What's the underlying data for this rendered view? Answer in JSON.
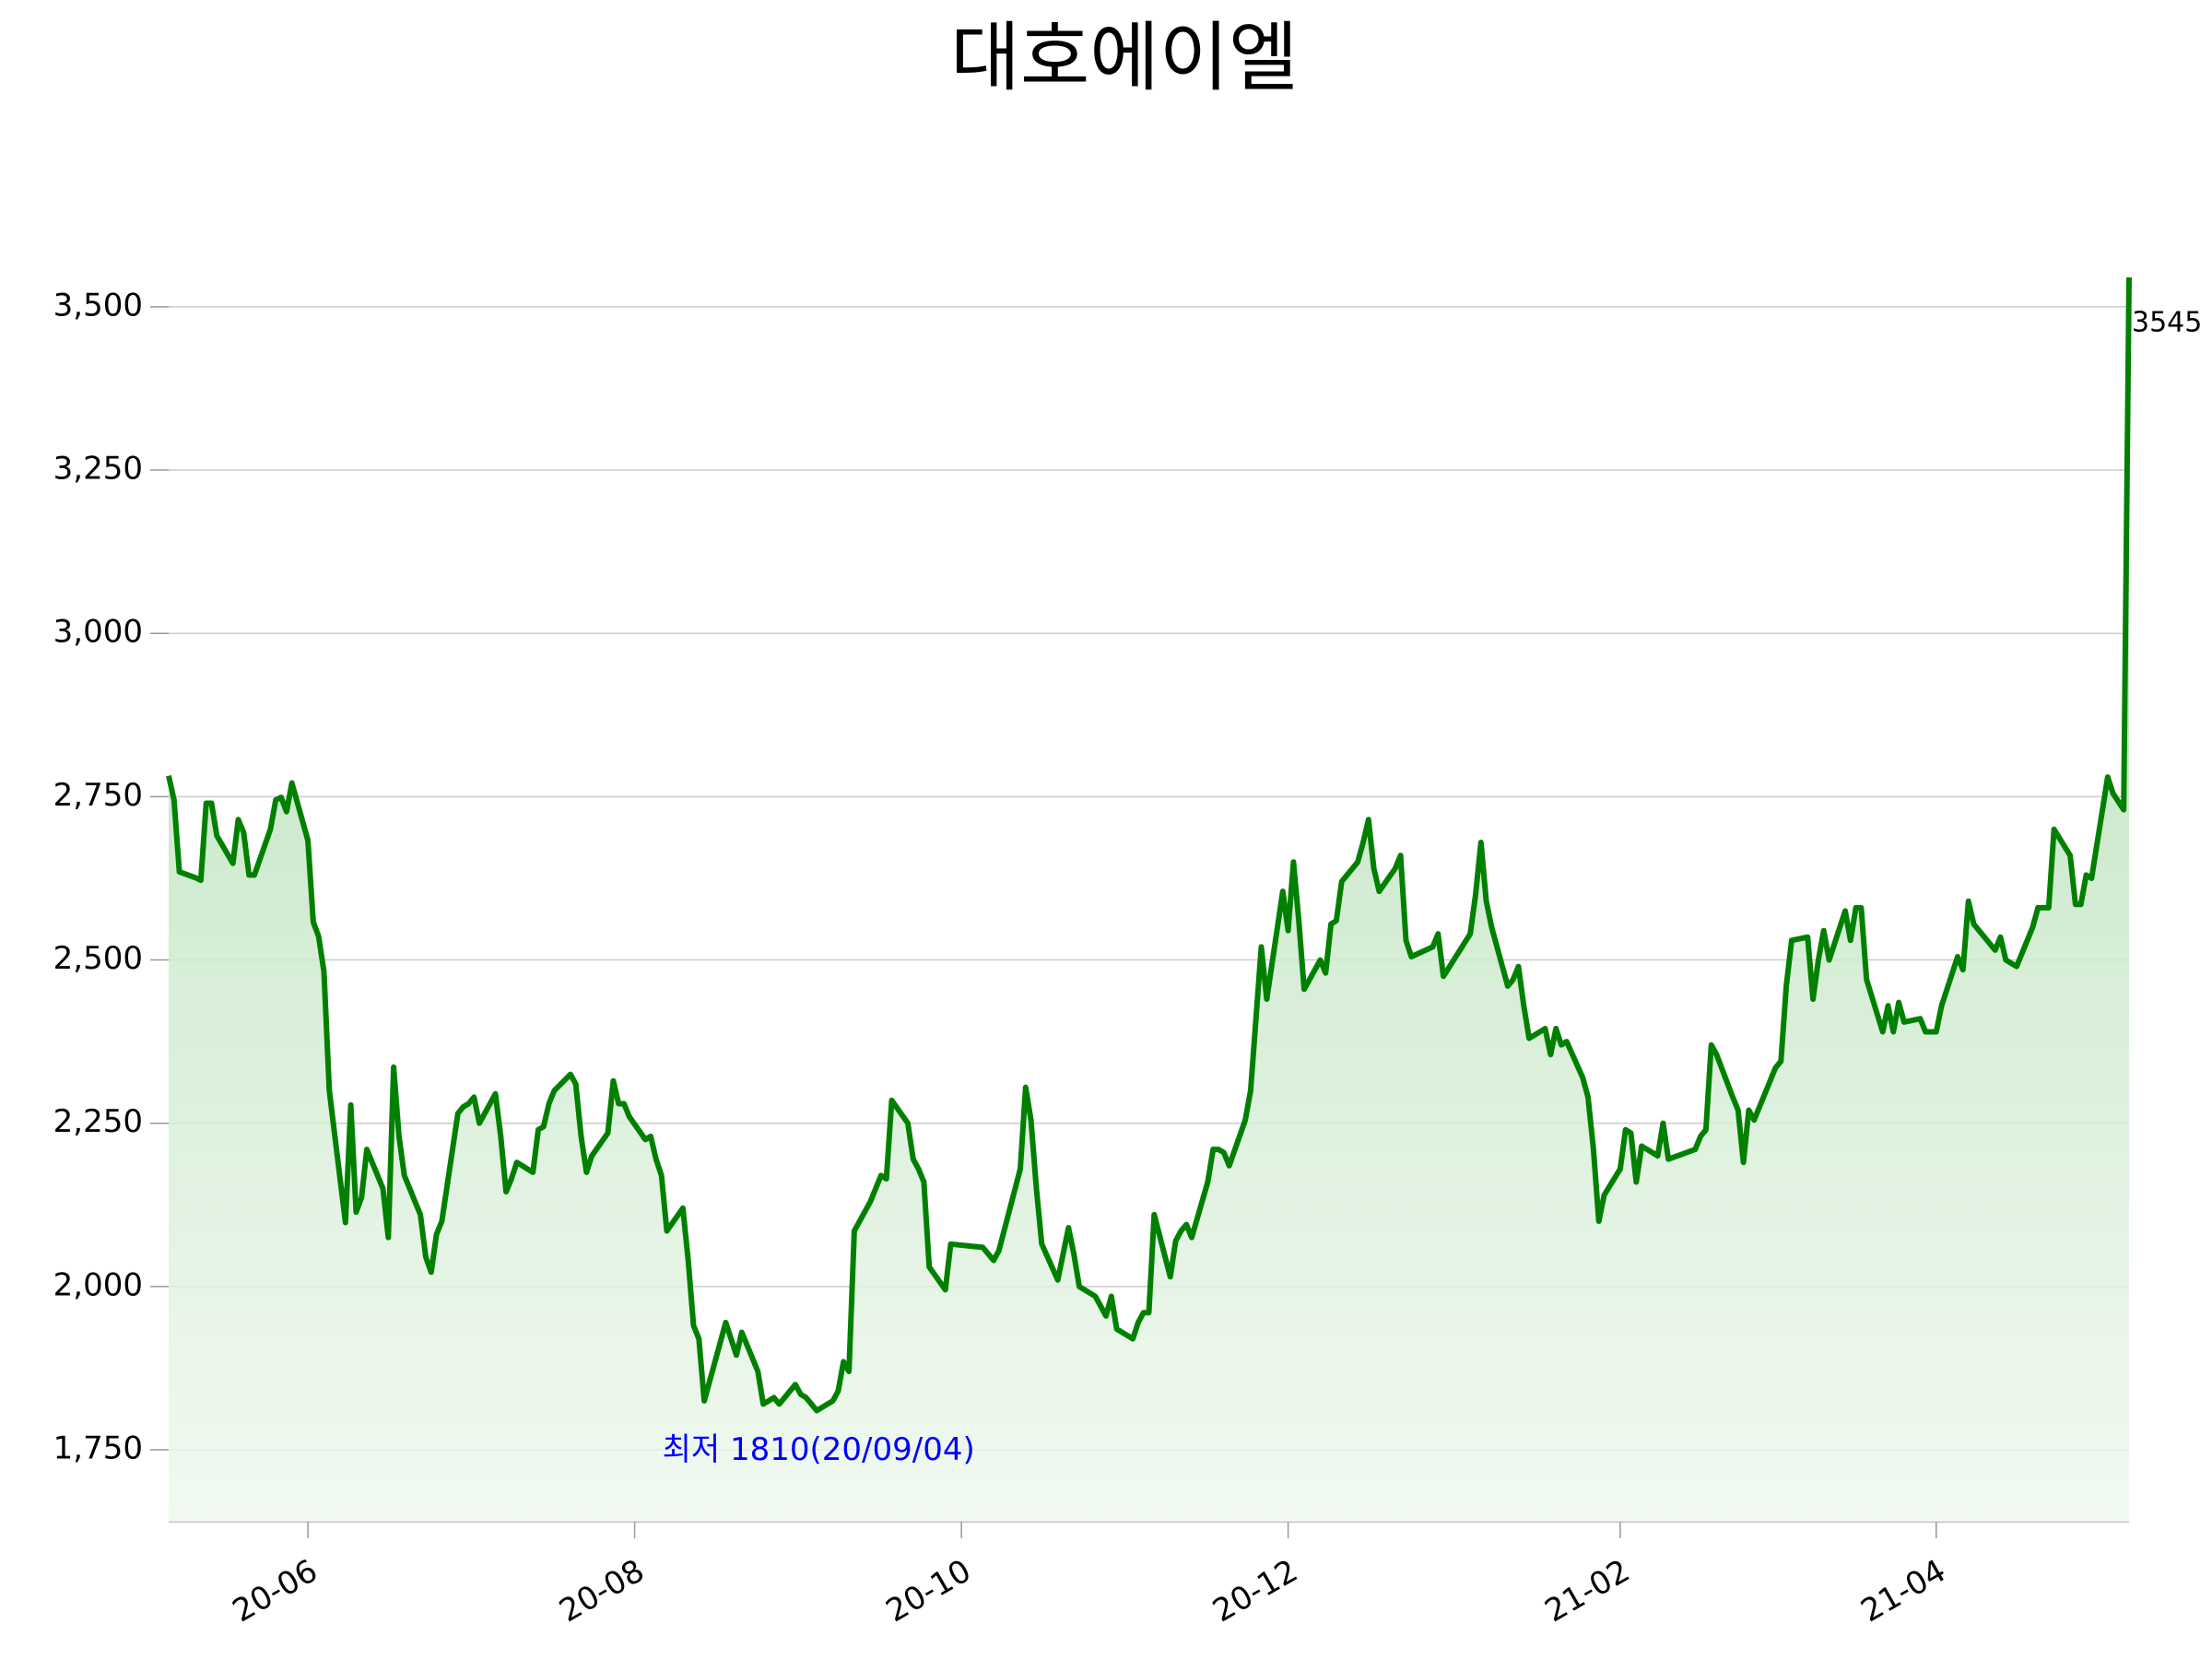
{
  "chart_data": {
    "type": "line",
    "title": "대호에이엘",
    "x": [
      "2020-05-06",
      "2020-05-07",
      "2020-05-08",
      "2020-05-11",
      "2020-05-12",
      "2020-05-13",
      "2020-05-14",
      "2020-05-15",
      "2020-05-18",
      "2020-05-19",
      "2020-05-20",
      "2020-05-21",
      "2020-05-22",
      "2020-05-25",
      "2020-05-26",
      "2020-05-27",
      "2020-05-28",
      "2020-05-29",
      "2020-06-01",
      "2020-06-02",
      "2020-06-03",
      "2020-06-04",
      "2020-06-05",
      "2020-06-08",
      "2020-06-09",
      "2020-06-10",
      "2020-06-11",
      "2020-06-12",
      "2020-06-15",
      "2020-06-16",
      "2020-06-17",
      "2020-06-18",
      "2020-06-19",
      "2020-06-22",
      "2020-06-23",
      "2020-06-24",
      "2020-06-25",
      "2020-06-26",
      "2020-06-29",
      "2020-06-30",
      "2020-07-01",
      "2020-07-02",
      "2020-07-03",
      "2020-07-06",
      "2020-07-07",
      "2020-07-08",
      "2020-07-09",
      "2020-07-10",
      "2020-07-13",
      "2020-07-14",
      "2020-07-15",
      "2020-07-16",
      "2020-07-17",
      "2020-07-20",
      "2020-07-21",
      "2020-07-22",
      "2020-07-23",
      "2020-07-24",
      "2020-07-27",
      "2020-07-28",
      "2020-07-29",
      "2020-07-30",
      "2020-07-31",
      "2020-08-03",
      "2020-08-04",
      "2020-08-05",
      "2020-08-06",
      "2020-08-07",
      "2020-08-10",
      "2020-08-11",
      "2020-08-12",
      "2020-08-13",
      "2020-08-14",
      "2020-08-18",
      "2020-08-19",
      "2020-08-20",
      "2020-08-21",
      "2020-08-24",
      "2020-08-25",
      "2020-08-26",
      "2020-08-27",
      "2020-08-28",
      "2020-08-31",
      "2020-09-01",
      "2020-09-02",
      "2020-09-03",
      "2020-09-04",
      "2020-09-07",
      "2020-09-08",
      "2020-09-09",
      "2020-09-10",
      "2020-09-11",
      "2020-09-14",
      "2020-09-15",
      "2020-09-16",
      "2020-09-17",
      "2020-09-18",
      "2020-09-21",
      "2020-09-22",
      "2020-09-23",
      "2020-09-24",
      "2020-09-25",
      "2020-09-28",
      "2020-09-29",
      "2020-10-05",
      "2020-10-06",
      "2020-10-07",
      "2020-10-08",
      "2020-10-12",
      "2020-10-13",
      "2020-10-14",
      "2020-10-15",
      "2020-10-16",
      "2020-10-19",
      "2020-10-20",
      "2020-10-21",
      "2020-10-22",
      "2020-10-23",
      "2020-10-26",
      "2020-10-27",
      "2020-10-28",
      "2020-10-29",
      "2020-10-30",
      "2020-11-02",
      "2020-11-03",
      "2020-11-04",
      "2020-11-05",
      "2020-11-06",
      "2020-11-09",
      "2020-11-10",
      "2020-11-11",
      "2020-11-12",
      "2020-11-13",
      "2020-11-16",
      "2020-11-17",
      "2020-11-18",
      "2020-11-19",
      "2020-11-20",
      "2020-11-23",
      "2020-11-24",
      "2020-11-25",
      "2020-11-26",
      "2020-11-27",
      "2020-11-30",
      "2020-12-01",
      "2020-12-02",
      "2020-12-03",
      "2020-12-04",
      "2020-12-07",
      "2020-12-08",
      "2020-12-09",
      "2020-12-10",
      "2020-12-11",
      "2020-12-14",
      "2020-12-15",
      "2020-12-16",
      "2020-12-17",
      "2020-12-18",
      "2020-12-21",
      "2020-12-22",
      "2020-12-23",
      "2020-12-24",
      "2020-12-28",
      "2020-12-29",
      "2020-12-30",
      "2021-01-04",
      "2021-01-05",
      "2021-01-06",
      "2021-01-07",
      "2021-01-08",
      "2021-01-11",
      "2021-01-12",
      "2021-01-13",
      "2021-01-14",
      "2021-01-15",
      "2021-01-18",
      "2021-01-19",
      "2021-01-20",
      "2021-01-21",
      "2021-01-22",
      "2021-01-25",
      "2021-01-26",
      "2021-01-27",
      "2021-01-28",
      "2021-01-29",
      "2021-02-01",
      "2021-02-02",
      "2021-02-03",
      "2021-02-04",
      "2021-02-05",
      "2021-02-08",
      "2021-02-09",
      "2021-02-10",
      "2021-02-15",
      "2021-02-16",
      "2021-02-17",
      "2021-02-18",
      "2021-02-19",
      "2021-02-22",
      "2021-02-23",
      "2021-02-24",
      "2021-02-25",
      "2021-02-26",
      "2021-03-02",
      "2021-03-03",
      "2021-03-04",
      "2021-03-05",
      "2021-03-08",
      "2021-03-09",
      "2021-03-10",
      "2021-03-11",
      "2021-03-12",
      "2021-03-15",
      "2021-03-16",
      "2021-03-17",
      "2021-03-18",
      "2021-03-19",
      "2021-03-22",
      "2021-03-23",
      "2021-03-24",
      "2021-03-25",
      "2021-03-26",
      "2021-03-29",
      "2021-03-30",
      "2021-03-31",
      "2021-04-01",
      "2021-04-02",
      "2021-04-05",
      "2021-04-06",
      "2021-04-07",
      "2021-04-08",
      "2021-04-09",
      "2021-04-12",
      "2021-04-13",
      "2021-04-14",
      "2021-04-15",
      "2021-04-16",
      "2021-04-19",
      "2021-04-20",
      "2021-04-21",
      "2021-04-22",
      "2021-04-23",
      "2021-04-26",
      "2021-04-27",
      "2021-04-28",
      "2021-04-29",
      "2021-04-30",
      "2021-05-03",
      "2021-05-04",
      "2021-05-06",
      "2021-05-07"
    ],
    "series": [
      {
        "color": "#008000",
        "values": [
          2782,
          2745,
          2635,
          2626,
          2622,
          2740,
          2740,
          2690,
          2648,
          2715,
          2695,
          2630,
          2630,
          2700,
          2745,
          2749,
          2727,
          2771,
          2683,
          2558,
          2536,
          2482,
          2300,
          2098,
          2278,
          2114,
          2136,
          2210,
          2150,
          2075,
          2336,
          2230,
          2170,
          2110,
          2045,
          2022,
          2080,
          2100,
          2265,
          2275,
          2280,
          2290,
          2250,
          2295,
          2230,
          2145,
          2165,
          2190,
          2175,
          2240,
          2245,
          2280,
          2300,
          2325,
          2310,
          2230,
          2175,
          2200,
          2235,
          2315,
          2280,
          2280,
          2260,
          2225,
          2230,
          2195,
          2170,
          2085,
          2120,
          2040,
          1940,
          1920,
          1825,
          1945,
          1920,
          1895,
          1930,
          1870,
          1820,
          1825,
          1830,
          1820,
          1850,
          1835,
          1830,
          1820,
          1810,
          1825,
          1840,
          1885,
          1870,
          2085,
          2130,
          2150,
          2170,
          2165,
          2285,
          2250,
          2195,
          2180,
          2160,
          2030,
          1995,
          2065,
          2060,
          2050,
          2040,
          2055,
          2180,
          2305,
          2255,
          2150,
          2065,
          2010,
          2050,
          2090,
          2050,
          2000,
          1985,
          1970,
          1955,
          1985,
          1935,
          1920,
          1945,
          1960,
          1960,
          2110,
          2015,
          2070,
          2085,
          2095,
          2075,
          2160,
          2210,
          2210,
          2205,
          2185,
          2255,
          2300,
          2410,
          2520,
          2440,
          2605,
          2545,
          2650,
          2560,
          2455,
          2500,
          2480,
          2555,
          2560,
          2620,
          2650,
          2680,
          2715,
          2640,
          2605,
          2640,
          2660,
          2530,
          2505,
          2520,
          2540,
          2475,
          2540,
          2600,
          2680,
          2590,
          2550,
          2460,
          2470,
          2490,
          2430,
          2380,
          2395,
          2355,
          2395,
          2370,
          2375,
          2320,
          2290,
          2210,
          2100,
          2140,
          2180,
          2240,
          2235,
          2160,
          2215,
          2200,
          2250,
          2195,
          2210,
          2230,
          2240,
          2370,
          2355,
          2290,
          2270,
          2190,
          2270,
          2255,
          2335,
          2345,
          2460,
          2530,
          2535,
          2440,
          2500,
          2545,
          2500,
          2575,
          2530,
          2580,
          2580,
          2470,
          2390,
          2430,
          2390,
          2435,
          2405,
          2410,
          2390,
          2390,
          2390,
          2430,
          2505,
          2485,
          2590,
          2555,
          2545,
          2515,
          2535,
          2500,
          2495,
          2490,
          2550,
          2580,
          2580,
          2580,
          2700,
          2660,
          2585,
          2585,
          2630,
          2625,
          2780,
          2755,
          2730,
          3545
        ]
      }
    ],
    "annotations": [
      "최저 1810(20/09/04)"
    ],
    "xlim": [
      "2020-05-06",
      "2021-05-07"
    ],
    "xticks": [
      {
        "value": "2020-06-01",
        "label": "20-06"
      },
      {
        "value": "2020-08-01",
        "label": "20-08"
      },
      {
        "value": "2020-10-01",
        "label": "20-10"
      },
      {
        "value": "2020-12-01",
        "label": "20-12"
      },
      {
        "value": "2021-02-01",
        "label": "21-02"
      },
      {
        "value": "2021-04-01",
        "label": "21-04"
      }
    ],
    "ylim": [
      1640,
      3545
    ],
    "yticks": [
      {
        "value": 1750,
        "label": "1,750"
      },
      {
        "value": 2000,
        "label": "2,000"
      },
      {
        "value": 2250,
        "label": "2,250"
      },
      {
        "value": 2500,
        "label": "2,500"
      },
      {
        "value": 2750,
        "label": "2,750"
      },
      {
        "value": 3000,
        "label": "3,000"
      },
      {
        "value": 3250,
        "label": "3,250"
      },
      {
        "value": 3500,
        "label": "3,500"
      }
    ],
    "grid": true
  }
}
